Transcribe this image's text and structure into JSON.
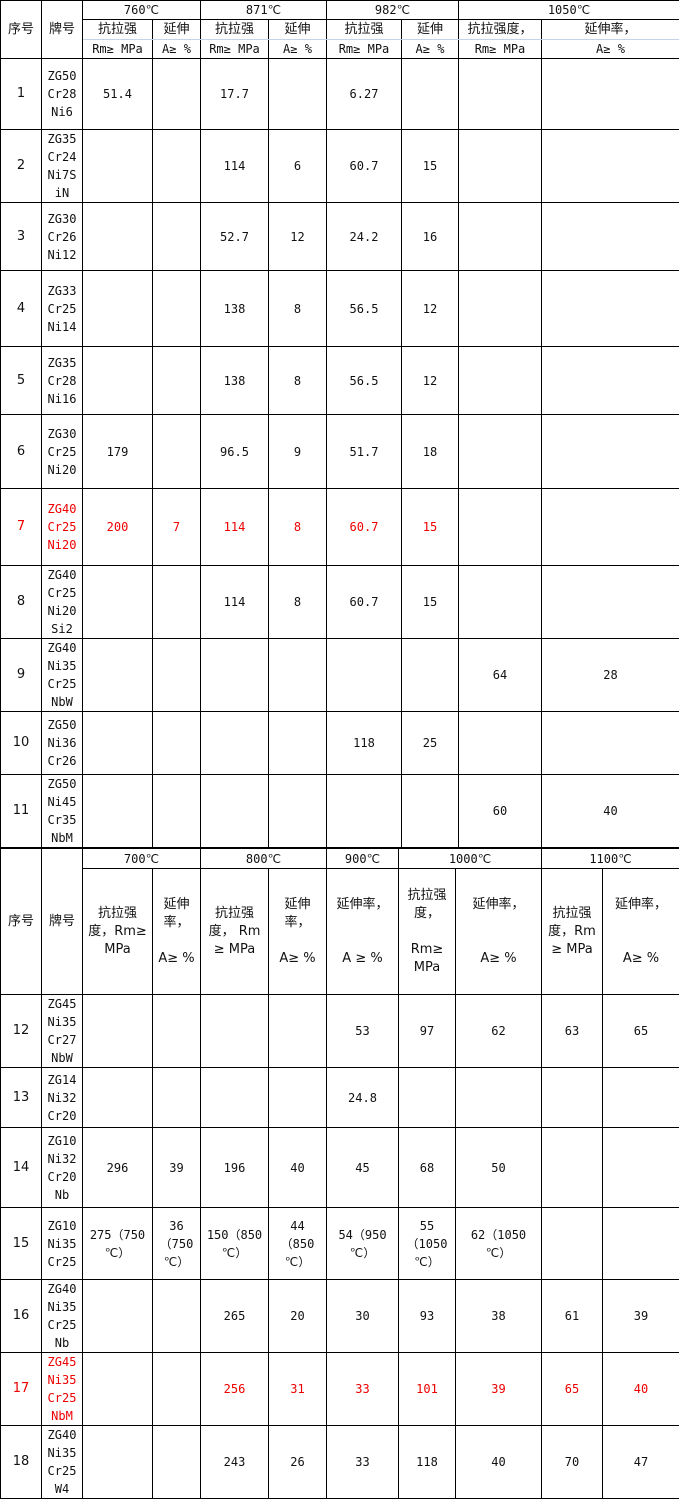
{
  "table1": {
    "header": {
      "no": "序号",
      "brand": "牌号",
      "temps": [
        "760℃",
        "871℃",
        "982℃",
        "1050℃"
      ],
      "sub1": [
        "抗拉强",
        "延伸",
        "抗拉强",
        "延伸",
        "抗拉强",
        "延伸",
        "抗拉强度，",
        "延伸率，"
      ],
      "sub2": [
        "Rm≥ MPa",
        "A≥ %",
        "Rm≥ MPa",
        "A≥ %",
        "Rm≥ MPa",
        "A≥ %",
        "Rm≥ MPa",
        "A≥ %"
      ]
    },
    "rows": [
      {
        "no": "1",
        "brand": "ZG50\nCr28\nNi6",
        "cells": [
          "51.4",
          "",
          "17.7",
          "",
          "6.27",
          "",
          "",
          ""
        ]
      },
      {
        "no": "2",
        "brand": "ZG35\nCr24\nNi7S\niN",
        "cells": [
          "",
          "",
          "114",
          "6",
          "60.7",
          "15",
          "",
          ""
        ]
      },
      {
        "no": "3",
        "brand": "ZG30\nCr26\nNi12",
        "cells": [
          "",
          "",
          "52.7",
          "12",
          "24.2",
          "16",
          "",
          ""
        ]
      },
      {
        "no": "4",
        "brand": "ZG33\nCr25\nNi14",
        "cells": [
          "",
          "",
          "138",
          "8",
          "56.5",
          "12",
          "",
          ""
        ]
      },
      {
        "no": "5",
        "brand": "ZG35\nCr28\nNi16",
        "cells": [
          "",
          "",
          "138",
          "8",
          "56.5",
          "12",
          "",
          ""
        ]
      },
      {
        "no": "6",
        "brand": "ZG30\nCr25\nNi20",
        "cells": [
          "179",
          "",
          "96.5",
          "9",
          "51.7",
          "18",
          "",
          ""
        ]
      },
      {
        "no": "7",
        "brand": "ZG40\nCr25\nNi20",
        "cells": [
          "200",
          "7",
          "114",
          "8",
          "60.7",
          "15",
          "",
          ""
        ],
        "highlight": true
      },
      {
        "no": "8",
        "brand": "ZG40\nCr25\nNi20\nSi2",
        "cells": [
          "",
          "",
          "114",
          "8",
          "60.7",
          "15",
          "",
          ""
        ]
      },
      {
        "no": "9",
        "brand": "ZG40\nNi35\nCr25\nNbW",
        "cells": [
          "",
          "",
          "",
          "",
          "",
          "",
          "64",
          "28"
        ]
      },
      {
        "no": "10",
        "brand": "ZG50\nNi36\nCr26",
        "cells": [
          "",
          "",
          "",
          "",
          "118",
          "25",
          "",
          ""
        ]
      },
      {
        "no": "11",
        "brand": "ZG50\nNi45\nCr35\nNbM",
        "cells": [
          "",
          "",
          "",
          "",
          "",
          "",
          "60",
          "40"
        ]
      }
    ]
  },
  "table2": {
    "header": {
      "no": "序号",
      "brand": "牌号",
      "temps": [
        "700℃",
        "800℃",
        "900℃",
        "1000℃",
        "1100℃"
      ],
      "sub": [
        "抗拉强\n度，Rm≥\nMPa",
        "延伸\n率，\n\nA≥ %",
        "抗拉强\n度， Rm\n≥ MPa",
        "延伸\n率，\n\nA≥ %",
        "延伸率，\n\n\nA ≥ %",
        "抗拉强\n度，\n\nRm≥\nMPa",
        "延伸率，\n\n\nA≥ %",
        "抗拉强\n度，Rm\n≥ MPa",
        "延伸率，\n\n\nA≥ %"
      ]
    },
    "rows": [
      {
        "no": "12",
        "brand": "ZG45\nNi35\nCr27\nNbW",
        "cells": [
          "",
          "",
          "",
          "",
          "53",
          "97",
          "62",
          "63",
          "65"
        ]
      },
      {
        "no": "13",
        "brand": "ZG14\nNi32\nCr20",
        "cells": [
          "",
          "",
          "",
          "",
          "24.8",
          "",
          "",
          "",
          ""
        ]
      },
      {
        "no": "14",
        "brand": "ZG10\nNi32\nCr20\nNb",
        "cells": [
          "296",
          "39",
          "196",
          "40",
          "45",
          "68",
          "50",
          "",
          ""
        ]
      },
      {
        "no": "15",
        "brand": "ZG10\nNi35\nCr25",
        "cells": [
          "275（750\n℃）",
          "36\n（750\n℃）",
          "150（850\n℃）",
          "44\n（850\n℃）",
          "54（950\n℃）",
          "55\n（1050\n℃）",
          "62（1050\n℃）",
          "",
          ""
        ]
      },
      {
        "no": "16",
        "brand": "ZG40\nNi35\nCr25\nNb",
        "cells": [
          "",
          "",
          "265",
          "20",
          "30",
          "93",
          "38",
          "61",
          "39"
        ]
      },
      {
        "no": "17",
        "brand": "ZG45\nNi35\nCr25\nNbM",
        "cells": [
          "",
          "",
          "256",
          "31",
          "33",
          "101",
          "39",
          "65",
          "40"
        ],
        "highlight": true
      },
      {
        "no": "18",
        "brand": "ZG40\nNi35\nCr25\nW4",
        "cells": [
          "",
          "",
          "243",
          "26",
          "33",
          "118",
          "40",
          "70",
          "47"
        ]
      }
    ]
  },
  "colors": {
    "highlight": "#e00000",
    "grid": "#000000"
  }
}
